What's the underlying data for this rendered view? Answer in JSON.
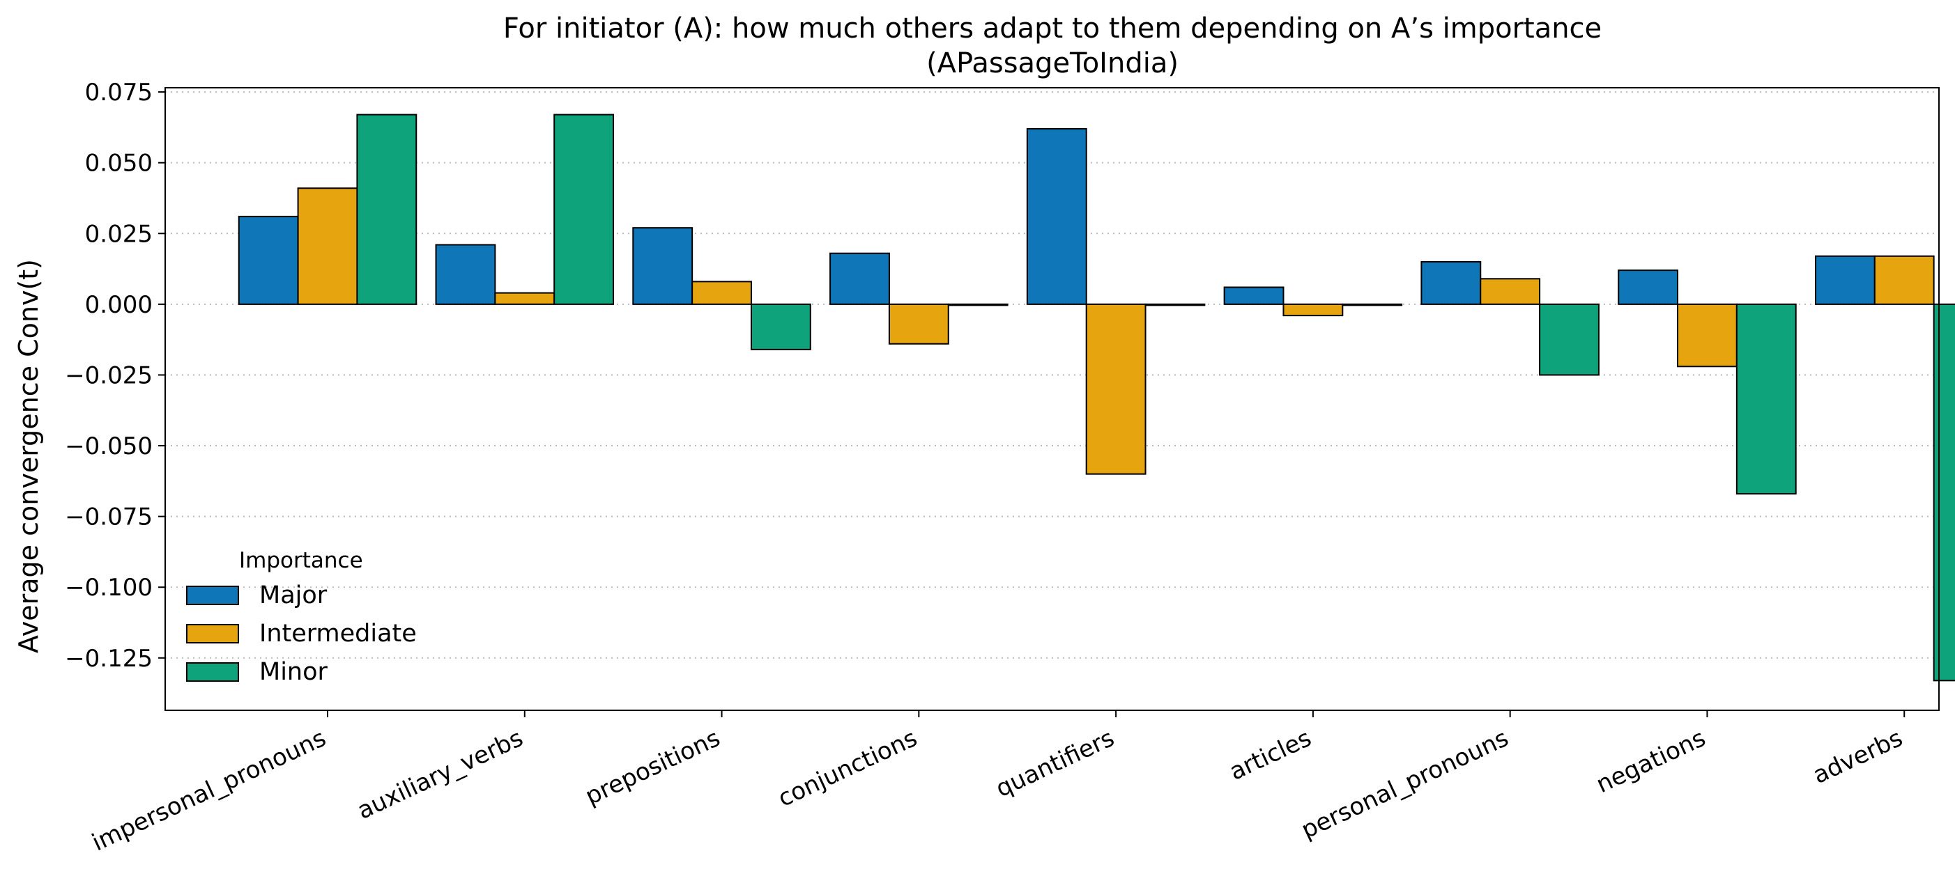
{
  "chart_data": {
    "type": "bar",
    "title": "For initiator (A): how much others adapt to them depending on A’s importance",
    "subtitle": "(APassageToIndia)",
    "xlabel": "",
    "ylabel": "Average convergence  Conv(t)",
    "ylim": [
      -0.1435,
      0.0765
    ],
    "yticks": [
      0.075,
      0.05,
      0.025,
      0.0,
      -0.025,
      -0.05,
      -0.075,
      -0.1,
      -0.125
    ],
    "ytick_labels": [
      "0.075",
      "0.050",
      "0.025",
      "0.000",
      "−0.025",
      "−0.050",
      "−0.075",
      "−0.100",
      "−0.125"
    ],
    "grid": "horizontal dotted",
    "categories": [
      "impersonal_pronouns",
      "auxiliary_verbs",
      "prepositions",
      "conjunctions",
      "quantifiers",
      "articles",
      "personal_pronouns",
      "negations",
      "adverbs"
    ],
    "legend": {
      "title": "Importance",
      "placement": "lower-left"
    },
    "series": [
      {
        "name": "Major",
        "color": "#0f76b8",
        "values": [
          0.031,
          0.021,
          0.027,
          0.018,
          0.062,
          0.006,
          0.015,
          0.012,
          0.017
        ]
      },
      {
        "name": "Intermediate",
        "color": "#e6a50f",
        "values": [
          0.041,
          0.004,
          0.008,
          -0.014,
          -0.06,
          -0.004,
          0.009,
          -0.022,
          0.017
        ]
      },
      {
        "name": "Minor",
        "color": "#0ea37a",
        "values": [
          0.067,
          0.067,
          -0.016,
          0.0,
          0.0,
          0.0,
          -0.025,
          -0.067,
          -0.133
        ]
      }
    ]
  }
}
